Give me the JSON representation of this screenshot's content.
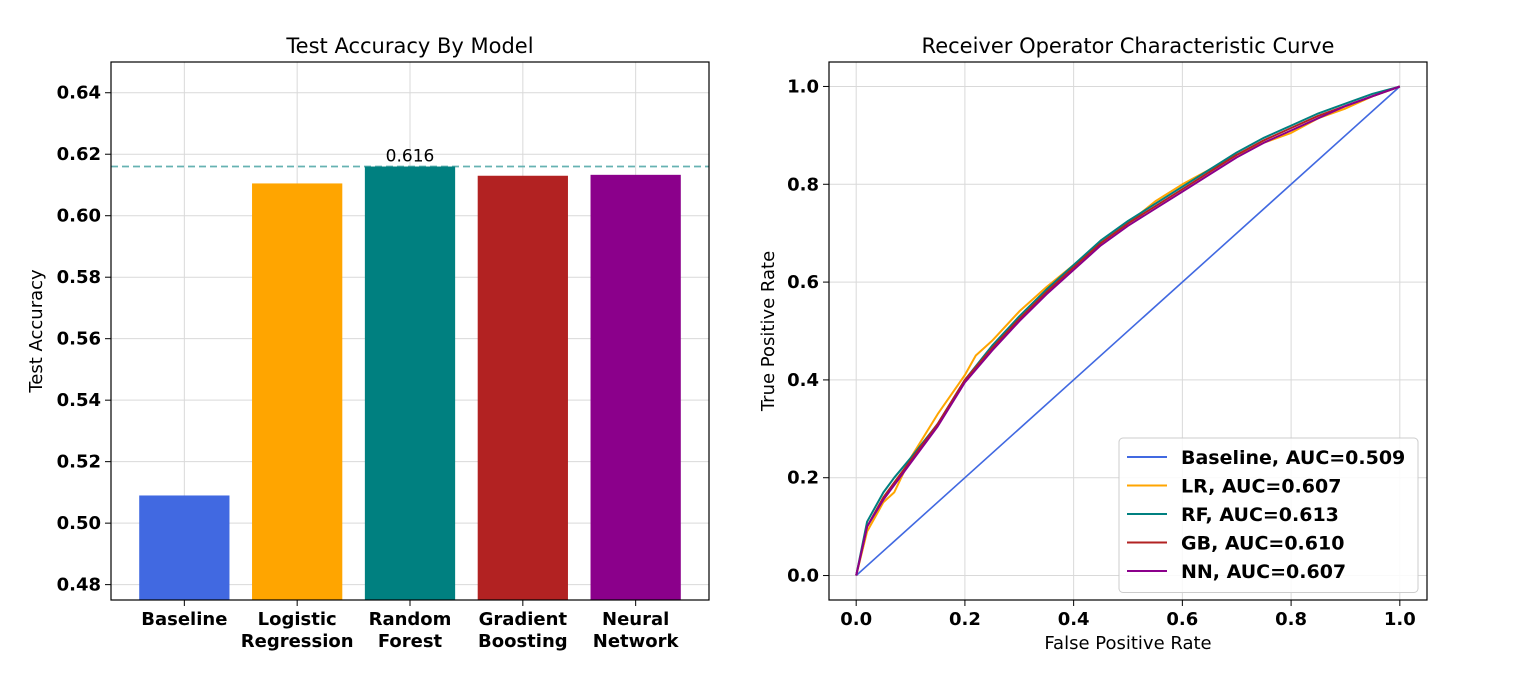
{
  "chart_data": [
    {
      "type": "bar",
      "title": "Test Accuracy By Model",
      "xlabel": "",
      "ylabel": "Test Accuracy",
      "ylim": [
        0.475,
        0.65
      ],
      "yticks": [
        "0.48",
        "0.50",
        "0.52",
        "0.54",
        "0.56",
        "0.58",
        "0.60",
        "0.62",
        "0.64"
      ],
      "categories": [
        [
          "Baseline"
        ],
        [
          "Logistic",
          "Regression"
        ],
        [
          "Random",
          "Forest"
        ],
        [
          "Gradient",
          "Boosting"
        ],
        [
          "Neural",
          "Network"
        ]
      ],
      "values": [
        0.509,
        0.6105,
        0.616,
        0.613,
        0.6133
      ],
      "colors": [
        "#4169e1",
        "#ffa500",
        "#008080",
        "#b22222",
        "#8b008b"
      ],
      "reference_line": {
        "value": 0.616,
        "style": "dashed",
        "color": "#66b2b2"
      },
      "annotation": {
        "text": "0.616",
        "category_index": 2
      },
      "grid": true
    },
    {
      "type": "line",
      "title": "Receiver Operator Characteristic Curve",
      "xlabel": "False Positive Rate",
      "ylabel": "True Positive Rate",
      "xlim": [
        -0.05,
        1.05
      ],
      "ylim": [
        -0.05,
        1.05
      ],
      "xticks": [
        "0.0",
        "0.2",
        "0.4",
        "0.6",
        "0.8",
        "1.0"
      ],
      "yticks": [
        "0.0",
        "0.2",
        "0.4",
        "0.6",
        "0.8",
        "1.0"
      ],
      "legend_position": "lower-right",
      "grid": true,
      "series": [
        {
          "name": "Baseline, AUC=0.509",
          "color": "#4169e1",
          "x": [
            0,
            1
          ],
          "y": [
            0,
            1
          ]
        },
        {
          "name": "LR, AUC=0.607",
          "color": "#ffa500",
          "x": [
            0,
            0.02,
            0.05,
            0.07,
            0.1,
            0.15,
            0.2,
            0.22,
            0.25,
            0.3,
            0.35,
            0.4,
            0.45,
            0.5,
            0.55,
            0.6,
            0.65,
            0.7,
            0.75,
            0.8,
            0.85,
            0.9,
            0.95,
            1.0
          ],
          "y": [
            0,
            0.09,
            0.15,
            0.17,
            0.24,
            0.33,
            0.41,
            0.45,
            0.48,
            0.54,
            0.59,
            0.635,
            0.68,
            0.72,
            0.765,
            0.8,
            0.83,
            0.86,
            0.885,
            0.905,
            0.935,
            0.955,
            0.98,
            1.0
          ]
        },
        {
          "name": "RF, AUC=0.613",
          "color": "#008080",
          "x": [
            0,
            0.02,
            0.05,
            0.07,
            0.1,
            0.15,
            0.2,
            0.25,
            0.3,
            0.35,
            0.4,
            0.45,
            0.5,
            0.55,
            0.6,
            0.65,
            0.7,
            0.75,
            0.8,
            0.85,
            0.9,
            0.95,
            1.0
          ],
          "y": [
            0,
            0.11,
            0.17,
            0.2,
            0.24,
            0.31,
            0.4,
            0.47,
            0.53,
            0.585,
            0.635,
            0.685,
            0.725,
            0.76,
            0.795,
            0.83,
            0.865,
            0.895,
            0.92,
            0.945,
            0.965,
            0.985,
            1.0
          ]
        },
        {
          "name": "GB, AUC=0.610",
          "color": "#b22222",
          "x": [
            0,
            0.02,
            0.05,
            0.07,
            0.1,
            0.15,
            0.2,
            0.25,
            0.3,
            0.35,
            0.4,
            0.45,
            0.5,
            0.55,
            0.6,
            0.65,
            0.7,
            0.75,
            0.8,
            0.85,
            0.9,
            0.95,
            1.0
          ],
          "y": [
            0,
            0.1,
            0.16,
            0.19,
            0.235,
            0.31,
            0.4,
            0.465,
            0.525,
            0.58,
            0.63,
            0.68,
            0.72,
            0.755,
            0.79,
            0.825,
            0.86,
            0.89,
            0.915,
            0.94,
            0.96,
            0.98,
            1.0
          ]
        },
        {
          "name": "NN, AUC=0.607",
          "color": "#8b008b",
          "x": [
            0,
            0.02,
            0.05,
            0.07,
            0.1,
            0.15,
            0.2,
            0.25,
            0.3,
            0.35,
            0.4,
            0.45,
            0.5,
            0.55,
            0.6,
            0.65,
            0.7,
            0.75,
            0.8,
            0.85,
            0.9,
            0.95,
            1.0
          ],
          "y": [
            0,
            0.1,
            0.155,
            0.185,
            0.23,
            0.305,
            0.395,
            0.46,
            0.52,
            0.575,
            0.625,
            0.675,
            0.715,
            0.75,
            0.785,
            0.82,
            0.855,
            0.885,
            0.91,
            0.935,
            0.96,
            0.98,
            1.0
          ]
        }
      ]
    }
  ]
}
